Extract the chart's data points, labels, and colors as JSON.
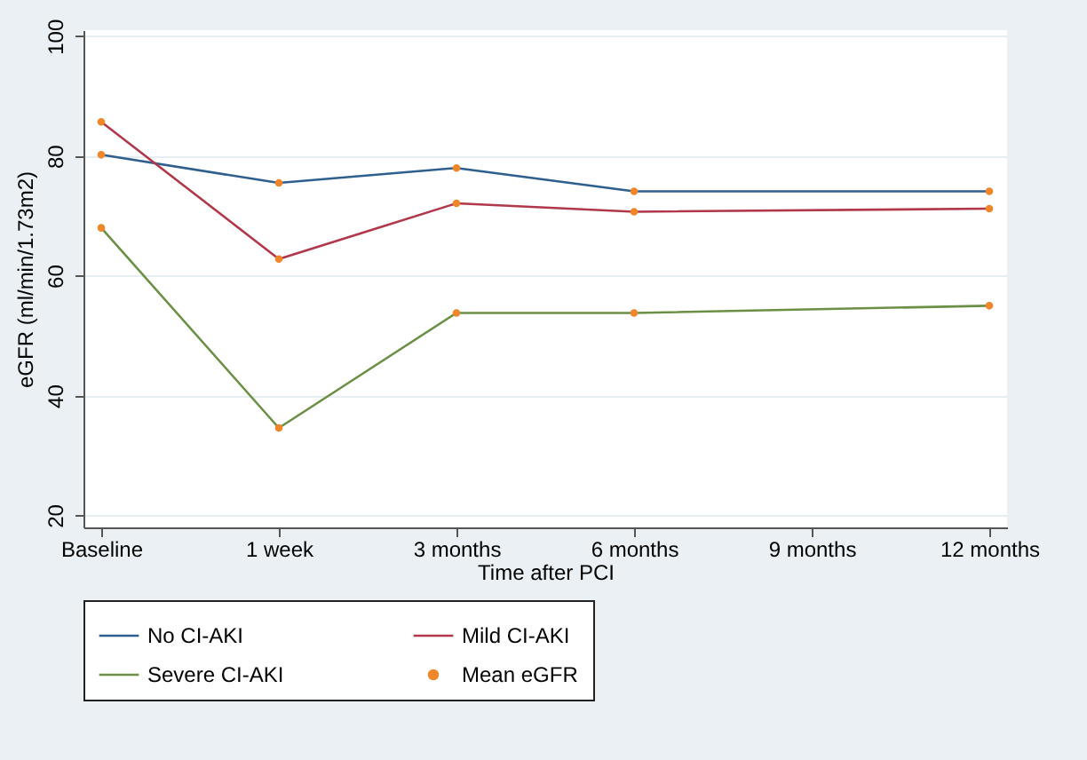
{
  "chart_data": {
    "type": "line",
    "xlabel": "Time after PCI",
    "ylabel": "eGFR (ml/min/1.73m2)",
    "categories": [
      "Baseline",
      "1 week",
      "3 months",
      "6 months",
      "9 months",
      "12 months"
    ],
    "ylim": [
      18,
      101
    ],
    "yticks": [
      20,
      40,
      60,
      80,
      100
    ],
    "grid": "y",
    "legend": "bottom",
    "series": [
      {
        "name": "No CI-AKI",
        "color": "#2f5f8f",
        "values": [
          80.2,
          75.5,
          78.0,
          74.1,
          null,
          74.1
        ]
      },
      {
        "name": "Mild CI-AKI",
        "color": "#b0384a",
        "values": [
          85.7,
          62.8,
          72.1,
          70.7,
          null,
          71.2
        ]
      },
      {
        "name": "Severe CI-AKI",
        "color": "#6b8f45",
        "values": [
          68.0,
          34.6,
          53.8,
          53.8,
          null,
          55.0
        ]
      },
      {
        "name": "Mean eGFR",
        "type": "scatter",
        "marker": "circle",
        "color": "#f0862a",
        "x": [
          "Baseline",
          "Baseline",
          "Baseline",
          "1 week",
          "1 week",
          "1 week",
          "3 months",
          "3 months",
          "3 months",
          "6 months",
          "6 months",
          "6 months",
          "12 months",
          "12 months",
          "12 months"
        ],
        "values": [
          80.2,
          85.7,
          68.0,
          75.5,
          62.8,
          34.6,
          78.0,
          72.1,
          53.8,
          74.1,
          70.7,
          53.8,
          74.1,
          71.2,
          55.0
        ]
      }
    ]
  }
}
